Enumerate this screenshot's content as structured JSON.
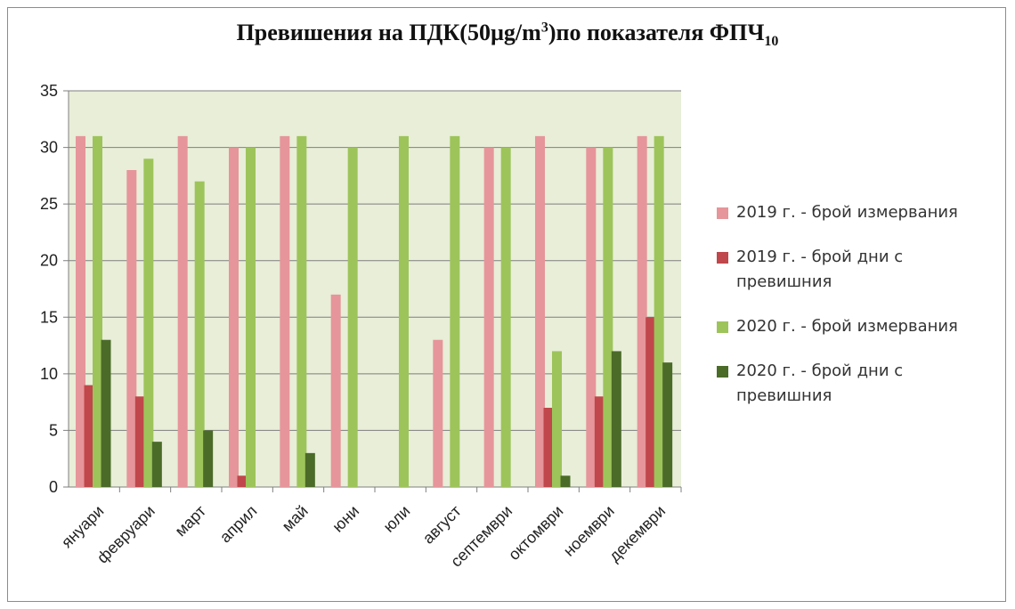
{
  "title_main": "Превишения на ПДК(50µg/m",
  "title_sup": "3",
  "title_mid": ")по показателя ФПЧ",
  "title_sub": "10",
  "colors": {
    "plot_bg": "#e8eed8",
    "grid": "#7f7f7f",
    "s2019_meas": "#e6959a",
    "s2019_days": "#c0474b",
    "s2020_meas": "#9dc45a",
    "s2020_days": "#4b6b29"
  },
  "chart_data": {
    "type": "bar",
    "categories": [
      "януари",
      "февруари",
      "март",
      "април",
      "май",
      "юни",
      "юли",
      "август",
      "септември",
      "октомври",
      "ноември",
      "декември"
    ],
    "series": [
      {
        "name": "2019 г. - брой измервания",
        "values": [
          31,
          28,
          31,
          30,
          31,
          17,
          0,
          13,
          30,
          31,
          30,
          31
        ]
      },
      {
        "name": "2019 г. - брой дни с превишния",
        "values": [
          9,
          8,
          0,
          1,
          0,
          0,
          0,
          0,
          0,
          7,
          8,
          15
        ]
      },
      {
        "name": "2020 г. - брой измервания",
        "values": [
          31,
          29,
          27,
          30,
          31,
          30,
          31,
          31,
          30,
          12,
          30,
          31
        ]
      },
      {
        "name": "2020 г. - брой дни с превишния",
        "values": [
          13,
          4,
          5,
          0,
          3,
          0,
          0,
          0,
          0,
          1,
          12,
          11
        ]
      }
    ],
    "yticks": [
      "0",
      "5",
      "10",
      "15",
      "20",
      "25",
      "30",
      "35"
    ],
    "ylim": [
      0,
      35
    ],
    "grid": true,
    "legend_position": "right"
  }
}
